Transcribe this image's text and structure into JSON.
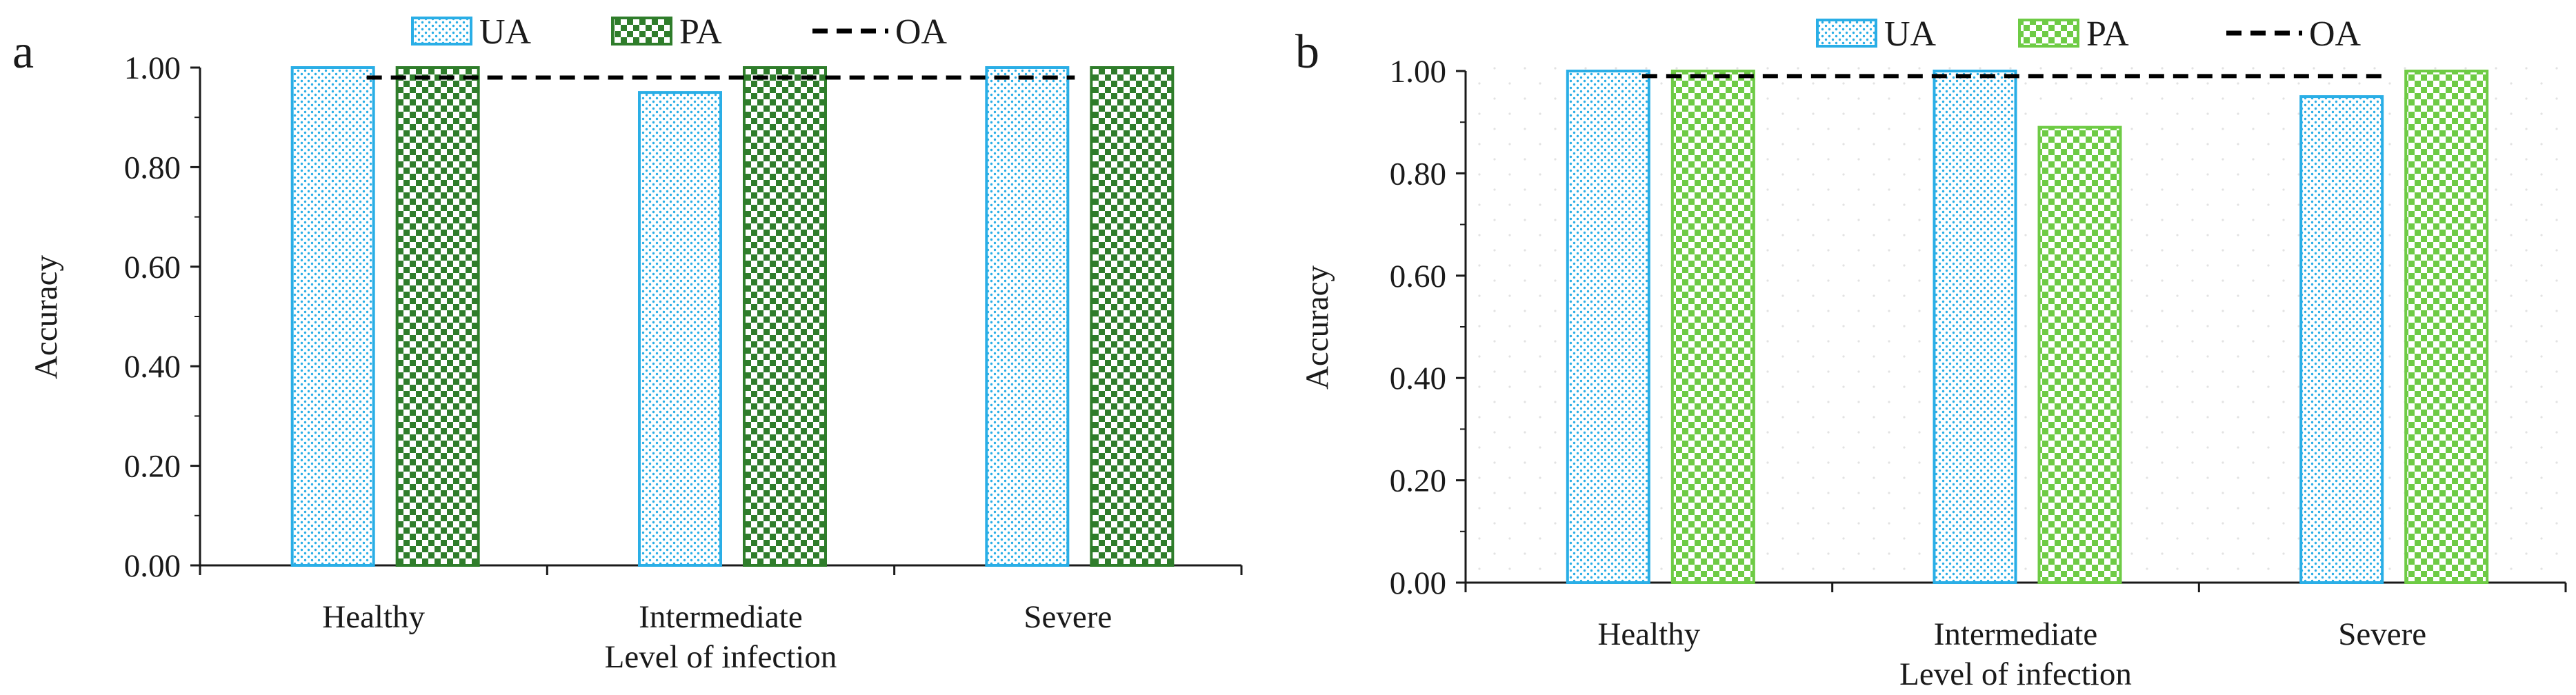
{
  "chart_data": [
    {
      "panel": "a",
      "type": "bar",
      "categories": [
        "Healthy",
        "Intermediate",
        "Severe"
      ],
      "series": [
        {
          "name": "UA",
          "values": [
            1.0,
            0.95,
            1.0
          ]
        },
        {
          "name": "PA",
          "values": [
            1.0,
            1.0,
            1.0
          ]
        }
      ],
      "line_series": {
        "name": "OA",
        "value": 0.98
      },
      "xlabel": "Level of infection",
      "ylabel": "Accuracy",
      "ylim": [
        0,
        1.0
      ],
      "yticks": [
        "0.00",
        "0.20",
        "0.40",
        "0.60",
        "0.80",
        "1.00"
      ],
      "colors": {
        "UA": "#2aaee6",
        "PA": "#2f7d2b",
        "OA": "#000000"
      }
    },
    {
      "panel": "b",
      "type": "bar",
      "categories": [
        "Healthy",
        "Intermediate",
        "Severe"
      ],
      "series": [
        {
          "name": "UA",
          "values": [
            1.0,
            1.0,
            0.95
          ]
        },
        {
          "name": "PA",
          "values": [
            1.0,
            0.89,
            1.0
          ]
        }
      ],
      "line_series": {
        "name": "OA",
        "value": 0.99
      },
      "xlabel": "Level of infection",
      "ylabel": "Accuracy",
      "ylim": [
        0,
        1.0
      ],
      "yticks": [
        "0.00",
        "0.20",
        "0.40",
        "0.60",
        "0.80",
        "1.00"
      ],
      "colors": {
        "UA": "#2aaee6",
        "PA": "#6ecb45",
        "OA": "#000000"
      }
    }
  ]
}
